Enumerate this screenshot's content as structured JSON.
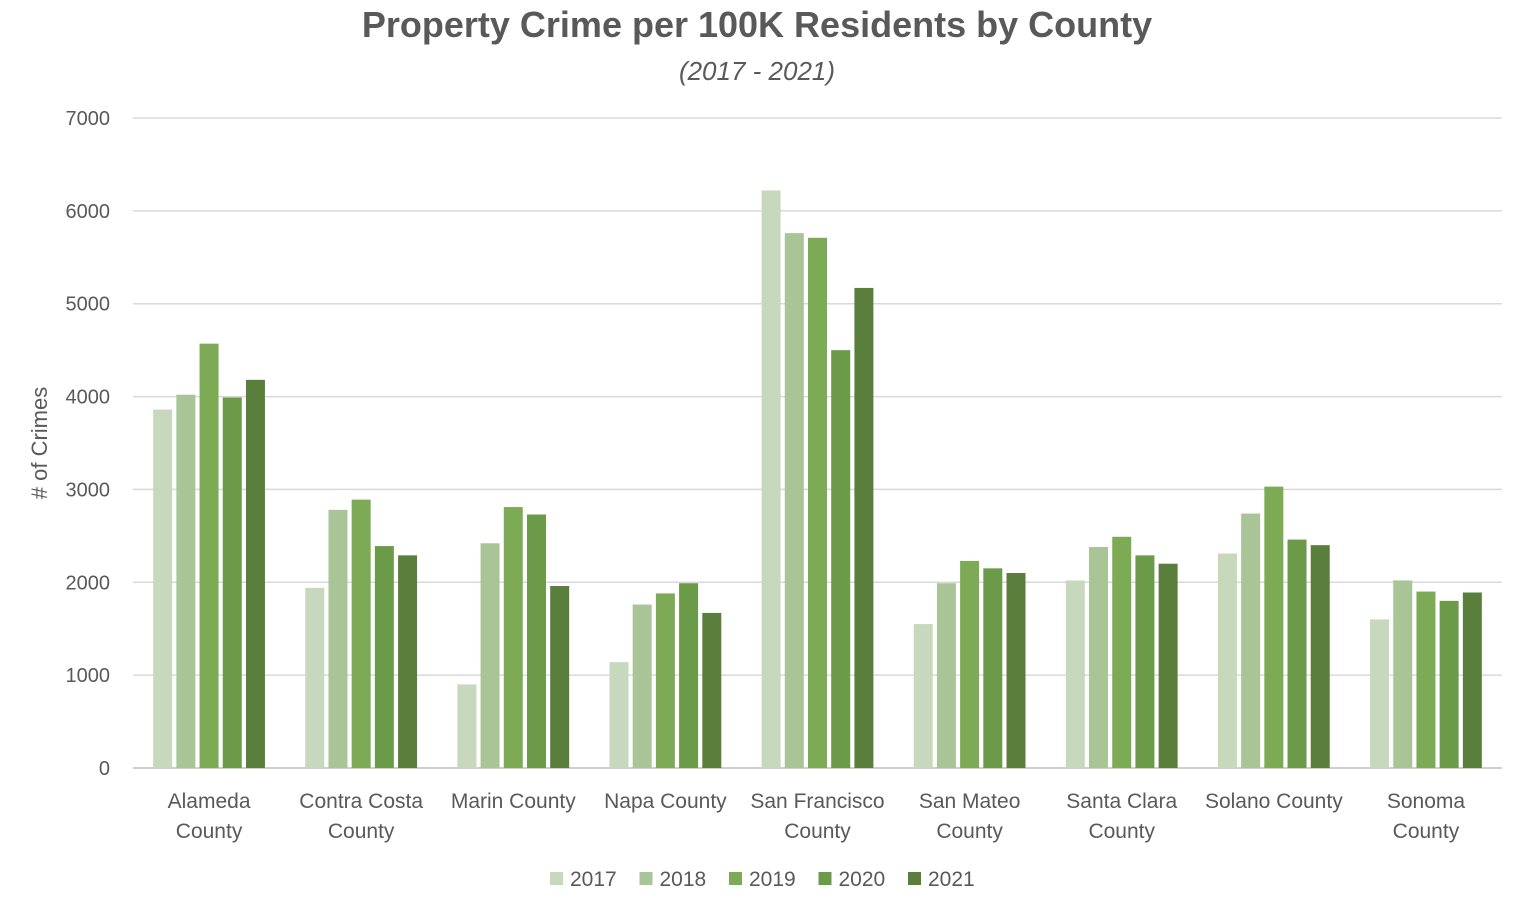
{
  "chart_data": {
    "type": "bar",
    "title": "Property Crime per 100K Residents by County",
    "subtitle": "(2017 - 2021)",
    "xlabel": "",
    "ylabel": "# of Crimes",
    "ylim": [
      0,
      7000
    ],
    "yticks": [
      0,
      1000,
      2000,
      3000,
      4000,
      5000,
      6000,
      7000
    ],
    "grid": true,
    "legend_position": "bottom",
    "categories": [
      [
        "Alameda",
        "County"
      ],
      [
        "Contra Costa",
        "County"
      ],
      [
        "Marin County"
      ],
      [
        "Napa County"
      ],
      [
        "San Francisco",
        "County"
      ],
      [
        "San Mateo",
        "County"
      ],
      [
        "Santa Clara",
        "County"
      ],
      [
        "Solano County"
      ],
      [
        "Sonoma",
        "County"
      ]
    ],
    "series": [
      {
        "name": "2017",
        "color": "#c7d8bd",
        "values": [
          3860,
          1940,
          900,
          1140,
          6220,
          1550,
          2020,
          2310,
          1600
        ]
      },
      {
        "name": "2018",
        "color": "#a9c497",
        "values": [
          4020,
          2780,
          2420,
          1760,
          5760,
          1990,
          2380,
          2740,
          2020
        ]
      },
      {
        "name": "2019",
        "color": "#7dab55",
        "values": [
          4570,
          2890,
          2810,
          1880,
          5710,
          2230,
          2490,
          3030,
          1900
        ]
      },
      {
        "name": "2020",
        "color": "#6b9a48",
        "values": [
          3990,
          2390,
          2730,
          1990,
          4500,
          2150,
          2290,
          2460,
          1800
        ]
      },
      {
        "name": "2021",
        "color": "#5a7f3c",
        "values": [
          4180,
          2290,
          1960,
          1670,
          5170,
          2100,
          2200,
          2400,
          1890
        ]
      }
    ]
  }
}
